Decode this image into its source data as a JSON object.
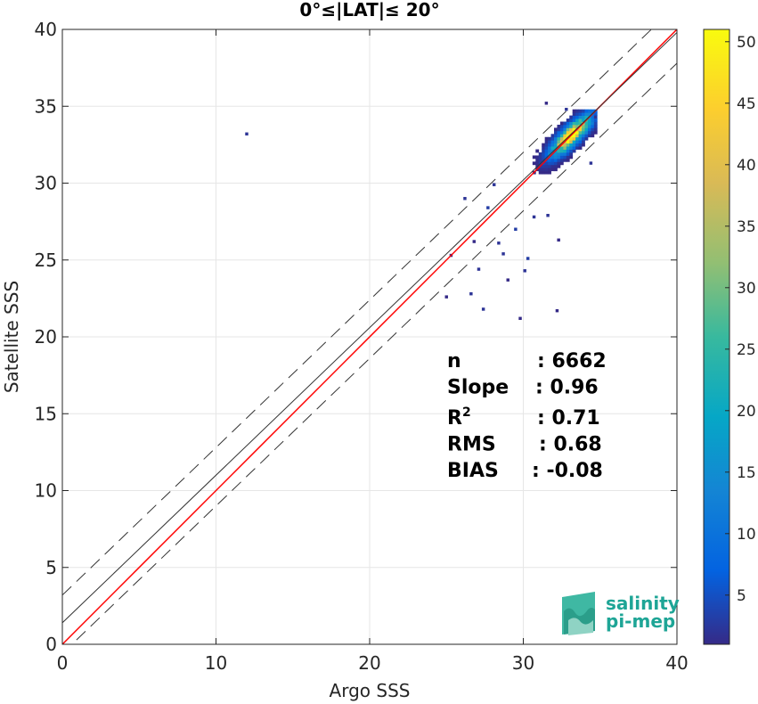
{
  "chart_data": {
    "type": "heatmap",
    "title": "0°≤|LAT|≤ 20°",
    "xlabel": "Argo SSS",
    "ylabel": "Satellite SSS",
    "xlim": [
      0,
      40
    ],
    "ylim": [
      0,
      40
    ],
    "xticks": [
      "0",
      "10",
      "20",
      "30",
      "40"
    ],
    "yticks": [
      "0",
      "5",
      "10",
      "15",
      "20",
      "25",
      "30",
      "35",
      "40"
    ],
    "grid": true,
    "colorbar": {
      "ticks": [
        "5",
        "10",
        "15",
        "20",
        "25",
        "30",
        "35",
        "40",
        "45",
        "50"
      ],
      "range": [
        1,
        51
      ],
      "colormap": "parula"
    },
    "reference_lines": [
      {
        "name": "one-to-one",
        "slope": 1,
        "intercept": 0,
        "color": "#ff0000"
      },
      {
        "name": "regression",
        "slope": 0.96,
        "intercept": 1.4,
        "color": "#333333"
      },
      {
        "name": "upper-bound",
        "slope": 0.96,
        "intercept": 3.2,
        "color": "#333333",
        "dashed": true
      },
      {
        "name": "lower-bound",
        "slope": 0.96,
        "intercept": -0.6,
        "color": "#333333",
        "dashed": true
      }
    ],
    "density_center": {
      "x": 33,
      "y": 33,
      "peak_count": 50
    },
    "outliers": [
      {
        "x": 11.9,
        "y": 33.1,
        "count": 2
      },
      {
        "x": 26.5,
        "y": 22.7,
        "count": 2
      },
      {
        "x": 27.3,
        "y": 21.7,
        "count": 2
      },
      {
        "x": 29.7,
        "y": 21.1,
        "count": 1
      },
      {
        "x": 32.1,
        "y": 21.6,
        "count": 1
      },
      {
        "x": 24.9,
        "y": 22.5,
        "count": 1
      },
      {
        "x": 25.2,
        "y": 25.2,
        "count": 1
      },
      {
        "x": 26.1,
        "y": 28.9,
        "count": 2
      },
      {
        "x": 27.0,
        "y": 24.3,
        "count": 2
      },
      {
        "x": 28.3,
        "y": 26.0,
        "count": 2
      },
      {
        "x": 28.6,
        "y": 25.3,
        "count": 2
      },
      {
        "x": 30.2,
        "y": 25.0,
        "count": 3
      },
      {
        "x": 29.4,
        "y": 26.9,
        "count": 3
      },
      {
        "x": 30.6,
        "y": 27.7,
        "count": 2
      },
      {
        "x": 31.5,
        "y": 27.8,
        "count": 2
      },
      {
        "x": 32.2,
        "y": 26.2,
        "count": 1
      },
      {
        "x": 32.7,
        "y": 34.7,
        "count": 2
      },
      {
        "x": 34.6,
        "y": 34.2,
        "count": 2
      },
      {
        "x": 34.3,
        "y": 31.2,
        "count": 2
      },
      {
        "x": 31.4,
        "y": 35.1,
        "count": 1
      },
      {
        "x": 26.7,
        "y": 26.1,
        "count": 1
      },
      {
        "x": 28.0,
        "y": 29.8,
        "count": 2
      },
      {
        "x": 27.6,
        "y": 28.3,
        "count": 3
      },
      {
        "x": 30.0,
        "y": 24.2,
        "count": 2
      },
      {
        "x": 28.9,
        "y": 23.6,
        "count": 1
      }
    ],
    "stats": [
      {
        "label": "n",
        "value": ": 6662"
      },
      {
        "label": "Slope",
        "value": ": 0.96"
      },
      {
        "label": "R2",
        "value": ": 0.71"
      },
      {
        "label": "RMS",
        "value": ": 0.68"
      },
      {
        "label": "BIAS",
        "value": ": -0.08"
      }
    ]
  },
  "logo": {
    "line1": "salinity",
    "line2": "pi-mep"
  }
}
